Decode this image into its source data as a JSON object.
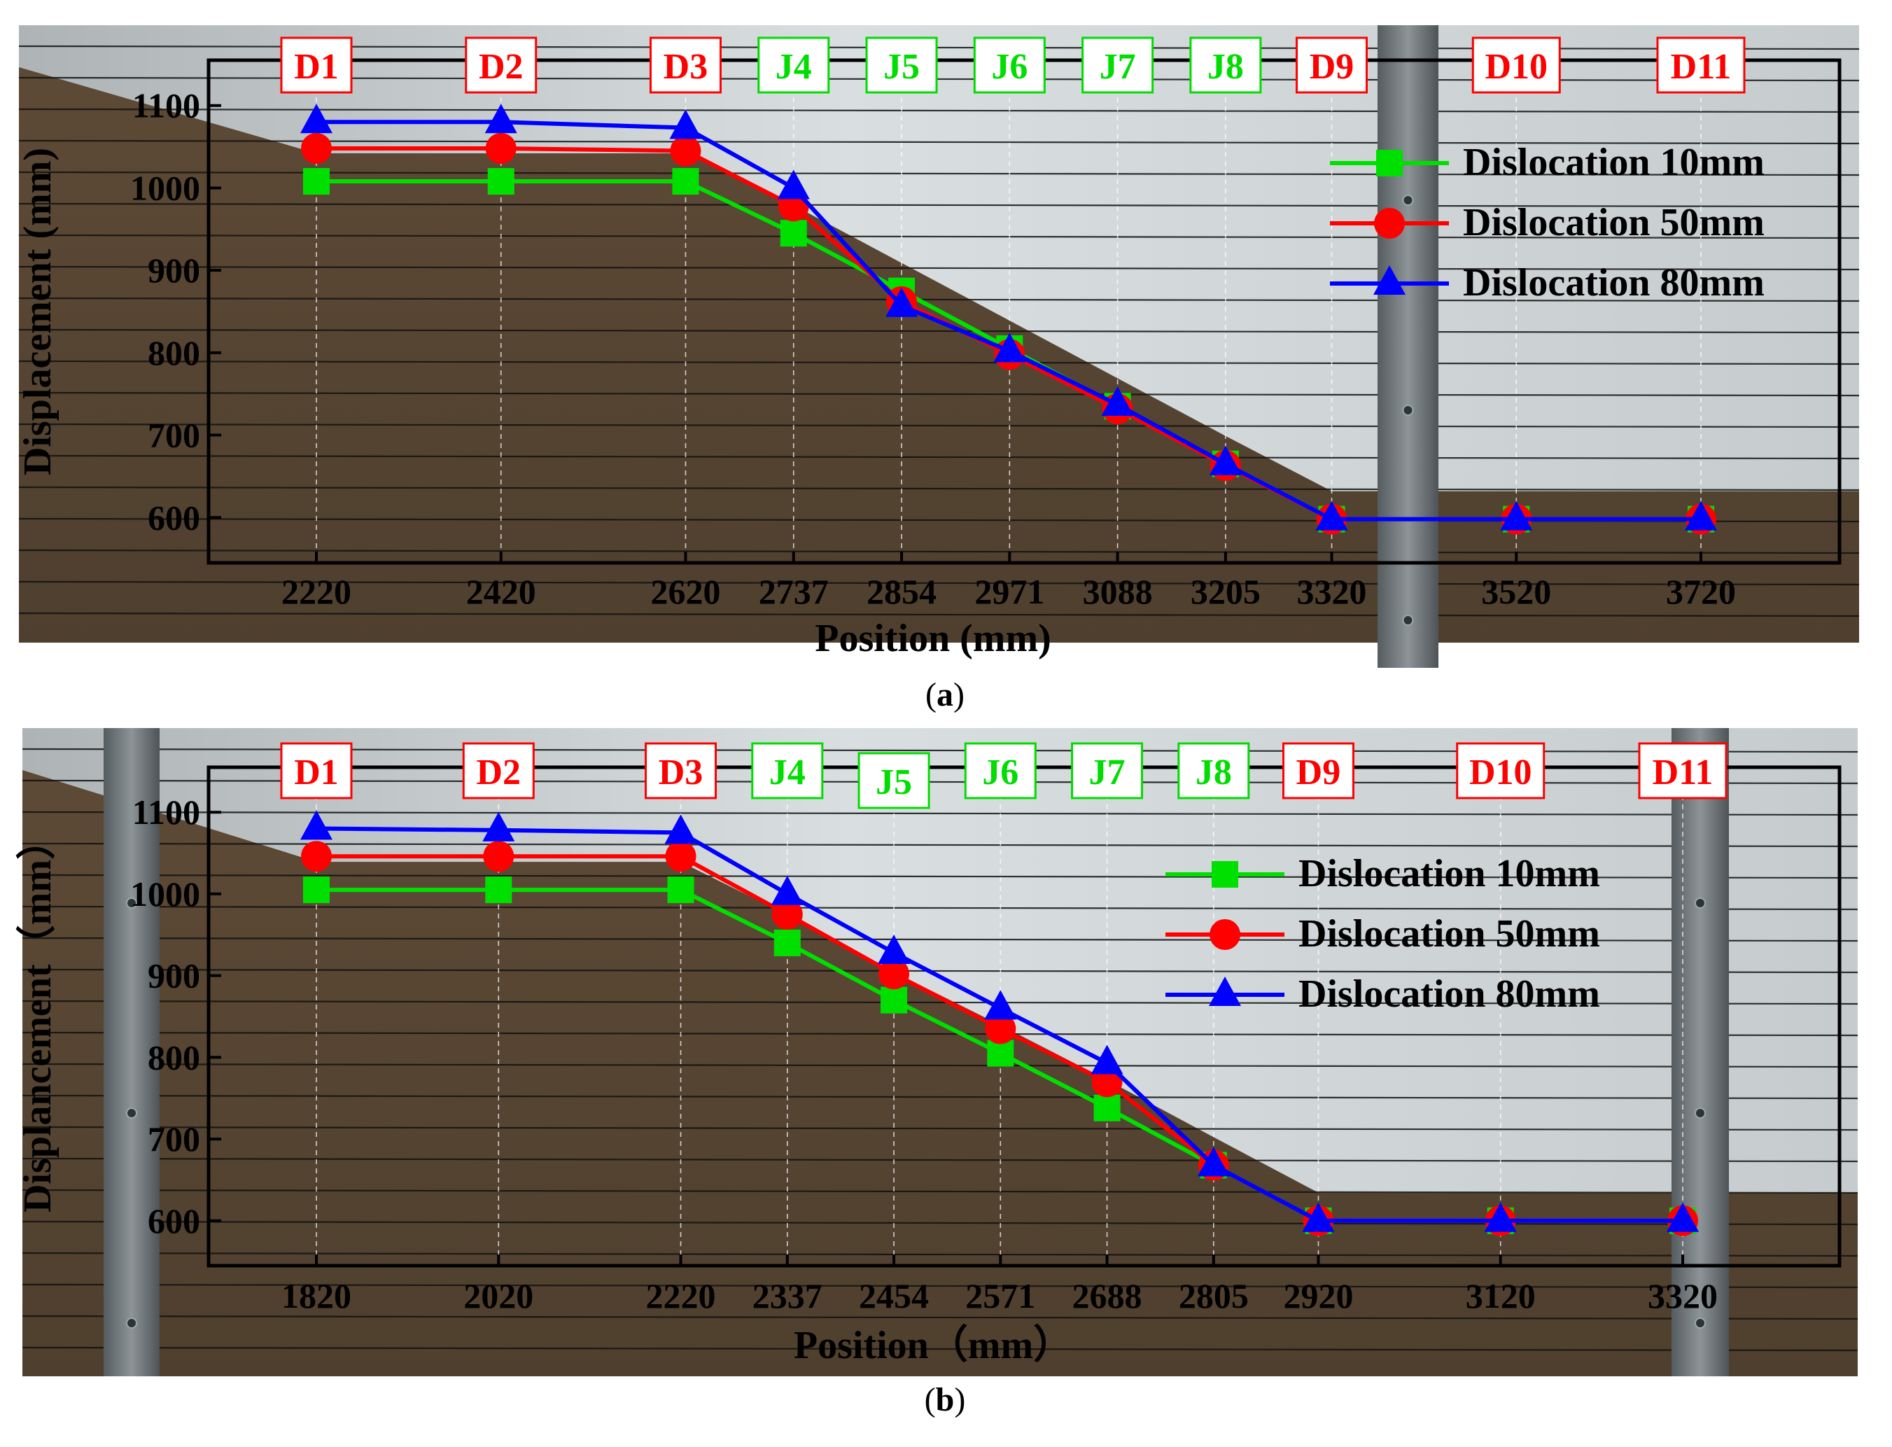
{
  "colors": {
    "series": [
      "#00e000",
      "#ff0000",
      "#0000ff"
    ],
    "tag_red": "#ff0000",
    "tag_green": "#00dd00",
    "soil": "#5a4632",
    "sky": "#d8dde0"
  },
  "chart_data": [
    {
      "type": "line",
      "panel_label": "(a)",
      "panel_label_parts": [
        "(",
        "a",
        ")"
      ],
      "xlabel": "Position (mm)",
      "ylabel": "Displacement (mm)",
      "x": [
        2220,
        2420,
        2620,
        2737,
        2854,
        2971,
        3088,
        3205,
        3320,
        3520,
        3720
      ],
      "x_tick_labels": [
        "2220",
        "2420",
        "2620",
        "2737",
        "2854",
        "2971",
        "3088",
        "3205",
        "3320",
        "3520",
        "3720"
      ],
      "point_labels": [
        "D1",
        "D2",
        "D3",
        "J4",
        "J5",
        "J6",
        "J7",
        "J8",
        "D9",
        "D10",
        "D11"
      ],
      "y_ticks": [
        600,
        700,
        800,
        900,
        1000,
        1100
      ],
      "ylim": [
        545,
        1155
      ],
      "legend_position": "top-right",
      "series": [
        {
          "name": "Dislocation 10mm",
          "marker": "square",
          "values": [
            1008,
            1008,
            1008,
            945,
            875,
            805,
            735,
            665,
            598,
            598,
            598
          ]
        },
        {
          "name": "Dislocation 50mm",
          "marker": "circle",
          "values": [
            1048,
            1048,
            1045,
            978,
            862,
            798,
            732,
            663,
            598,
            598,
            598
          ]
        },
        {
          "name": "Dislocation 80mm",
          "marker": "triangle",
          "values": [
            1080,
            1080,
            1073,
            1000,
            857,
            802,
            737,
            665,
            598,
            598,
            598
          ]
        }
      ]
    },
    {
      "type": "line",
      "panel_label": "(b)",
      "panel_label_parts": [
        "(",
        "b",
        ")"
      ],
      "xlabel": "Position（mm）",
      "ylabel": "Displancement（mm）",
      "x": [
        1820,
        2020,
        2220,
        2337,
        2454,
        2571,
        2688,
        2805,
        2920,
        3120,
        3320
      ],
      "x_tick_labels": [
        "1820",
        "2020",
        "2220",
        "2337",
        "2454",
        "2571",
        "2688",
        "2805",
        "2920",
        "3120",
        "3320"
      ],
      "point_labels": [
        "D1",
        "D2",
        "D3",
        "J4",
        "J5",
        "J6",
        "J7",
        "J8",
        "D9",
        "D10",
        "D11"
      ],
      "y_ticks": [
        600,
        700,
        800,
        900,
        1000,
        1100
      ],
      "ylim": [
        545,
        1155
      ],
      "legend_position": "top-right",
      "series": [
        {
          "name": "Dislocation 10mm",
          "marker": "square",
          "values": [
            1005,
            1005,
            1005,
            940,
            870,
            805,
            738,
            668,
            600,
            600,
            600
          ]
        },
        {
          "name": "Dislocation 50mm",
          "marker": "circle",
          "values": [
            1046,
            1046,
            1046,
            975,
            902,
            835,
            770,
            668,
            600,
            600,
            600
          ]
        },
        {
          "name": "Dislocation 80mm",
          "marker": "triangle",
          "values": [
            1080,
            1078,
            1075,
            1000,
            928,
            860,
            793,
            668,
            600,
            600,
            600
          ]
        }
      ]
    }
  ]
}
